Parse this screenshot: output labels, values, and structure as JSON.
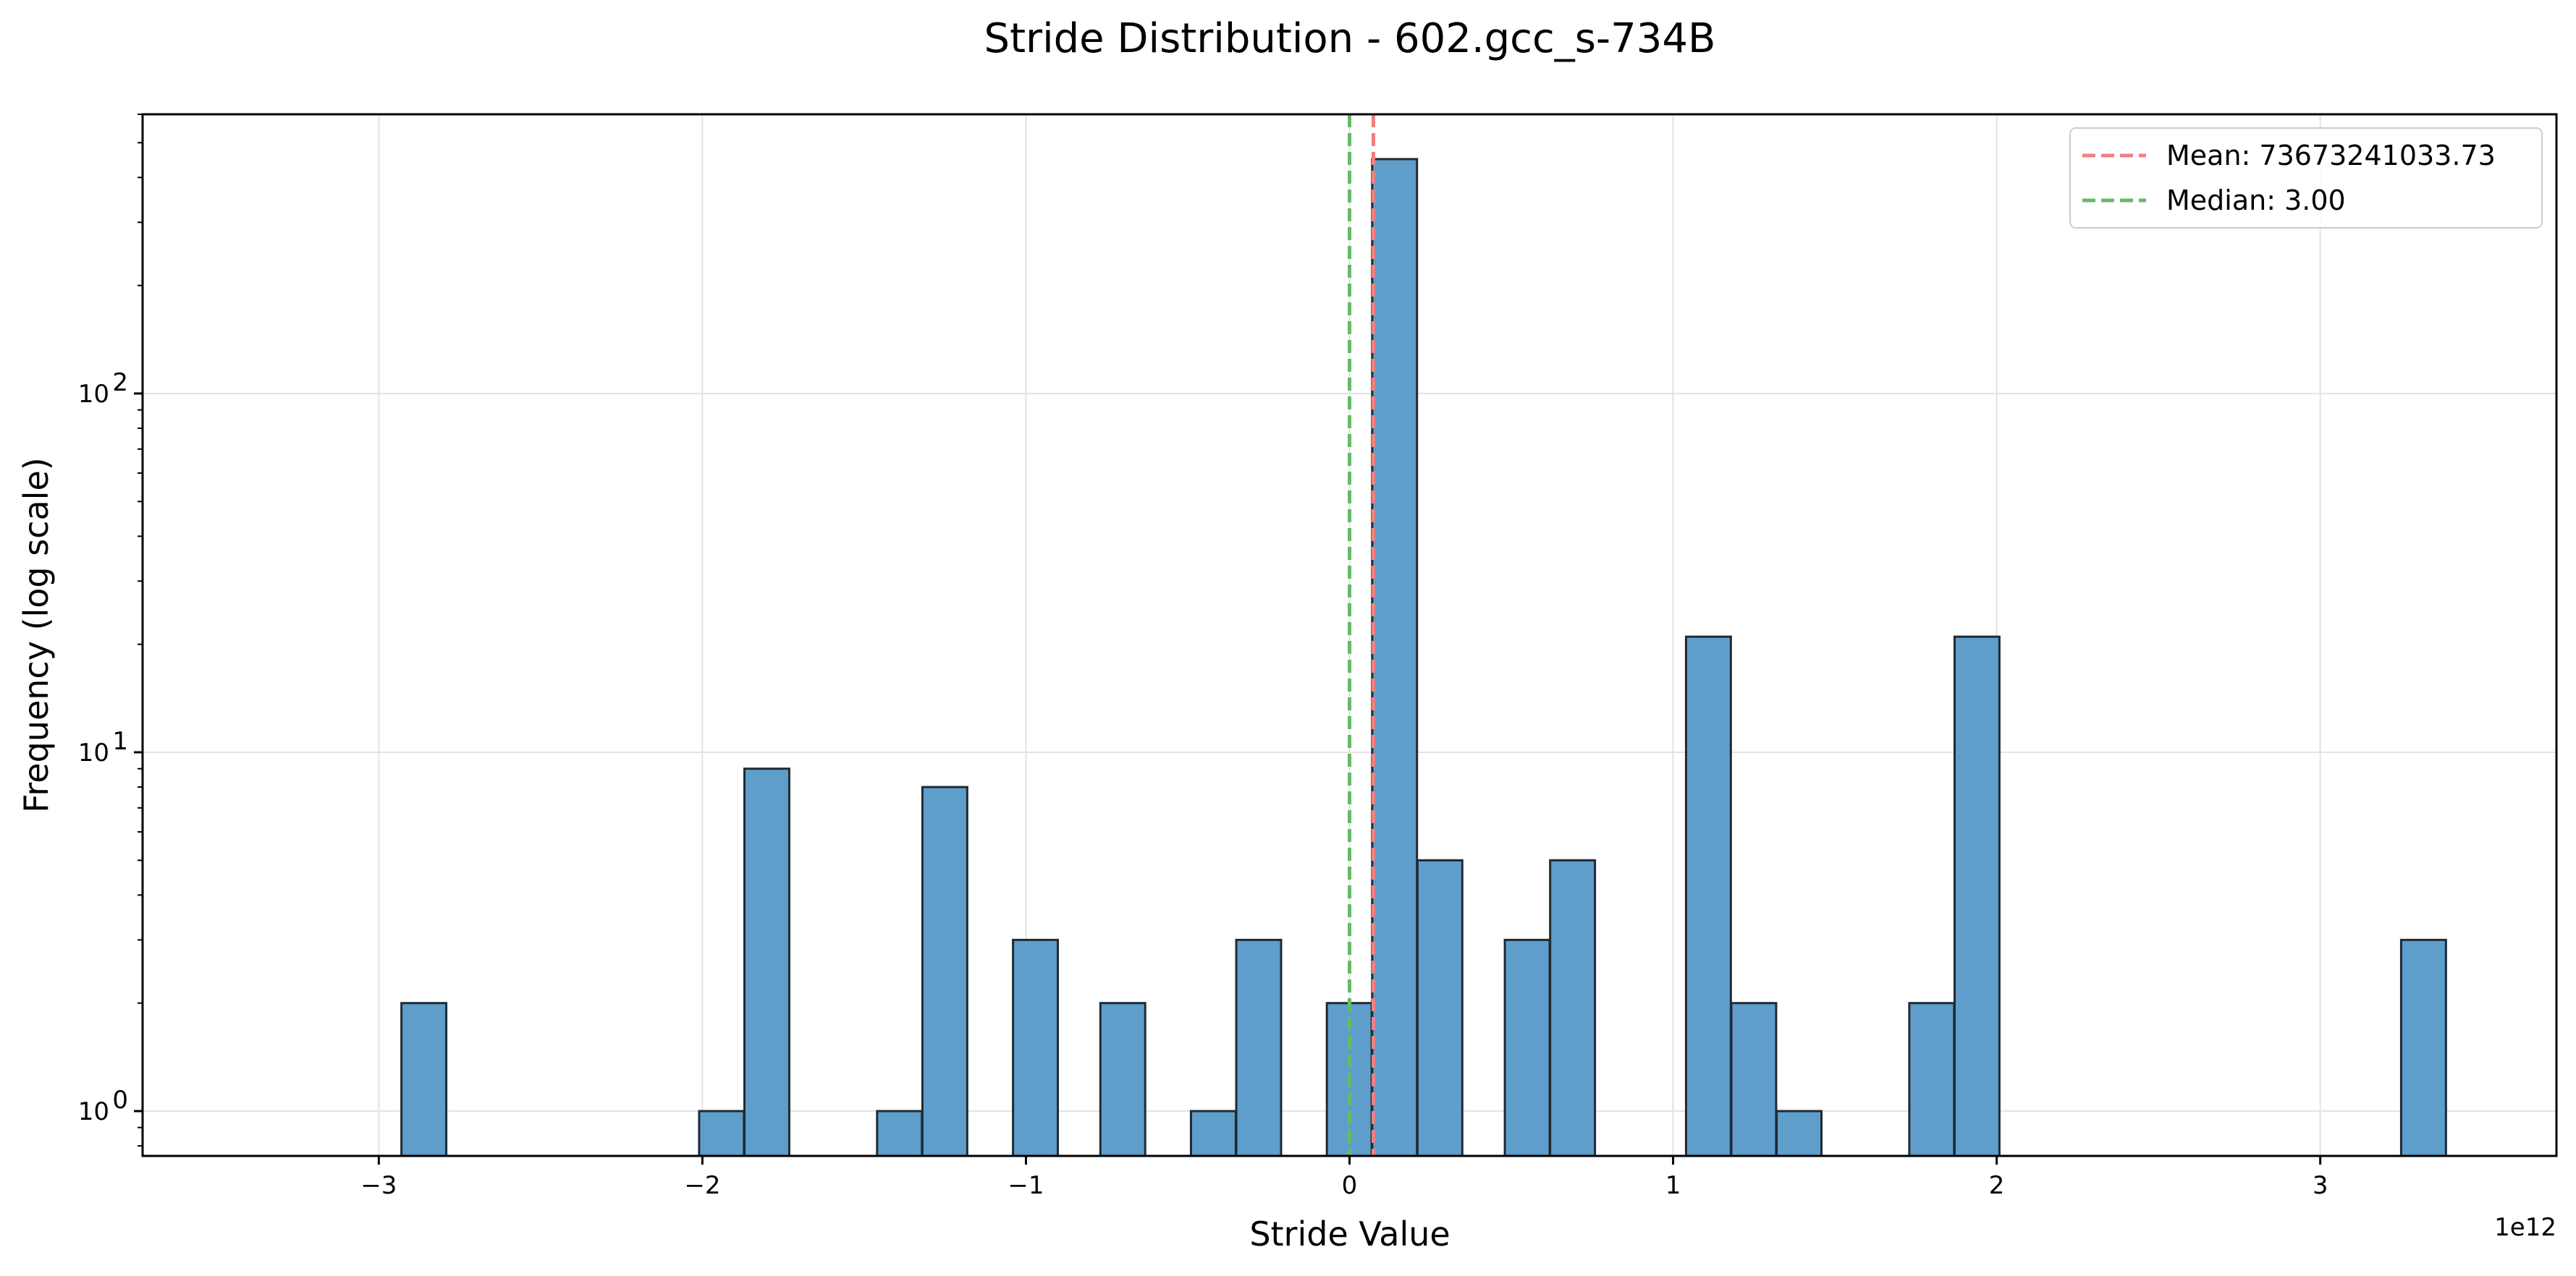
{
  "chart_data": {
    "type": "bar",
    "title": "Stride Distribution - 602.gcc_s-734B",
    "xlabel": "Stride Value",
    "ylabel": "Frequency (log scale)",
    "x_offset_label": "1e12",
    "y_scale": "log",
    "xlim": [
      -3.73,
      3.73
    ],
    "ylim": [
      0.75,
      600
    ],
    "x_ticks": [
      -3,
      -2,
      -1,
      0,
      1,
      2,
      3
    ],
    "x_tick_labels": [
      "−3",
      "−2",
      "−1",
      "0",
      "1",
      "2",
      "3"
    ],
    "y_ticks": [
      1,
      10,
      100
    ],
    "y_tick_labels": [
      {
        "base": "10",
        "exp": "0"
      },
      {
        "base": "10",
        "exp": "1"
      },
      {
        "base": "10",
        "exp": "2"
      }
    ],
    "grid": true,
    "legend_position": "top-right",
    "bin_width": 0.1385,
    "bins": [
      {
        "x": -2.93,
        "count": 2
      },
      {
        "x": -2.01,
        "count": 1
      },
      {
        "x": -1.87,
        "count": 9
      },
      {
        "x": -1.46,
        "count": 1
      },
      {
        "x": -1.32,
        "count": 8
      },
      {
        "x": -1.04,
        "count": 3
      },
      {
        "x": -0.77,
        "count": 2
      },
      {
        "x": -0.49,
        "count": 1
      },
      {
        "x": -0.35,
        "count": 3
      },
      {
        "x": -0.07,
        "count": 2
      },
      {
        "x": 0.07,
        "count": 450
      },
      {
        "x": 0.21,
        "count": 5
      },
      {
        "x": 0.48,
        "count": 3
      },
      {
        "x": 0.62,
        "count": 5
      },
      {
        "x": 1.04,
        "count": 21
      },
      {
        "x": 1.18,
        "count": 2
      },
      {
        "x": 1.32,
        "count": 1
      },
      {
        "x": 1.73,
        "count": 2
      },
      {
        "x": 1.87,
        "count": 21
      },
      {
        "x": 3.25,
        "count": 3
      }
    ],
    "reference_lines": [
      {
        "label": "Mean: 73673241033.73",
        "x": 0.0737,
        "color": "#f08080"
      },
      {
        "label": "Median: 3.00",
        "x": 0.0,
        "color": "#66bb66"
      }
    ],
    "bar_color": "#5f9ecb",
    "bar_edge_color": "#1f2a33"
  }
}
